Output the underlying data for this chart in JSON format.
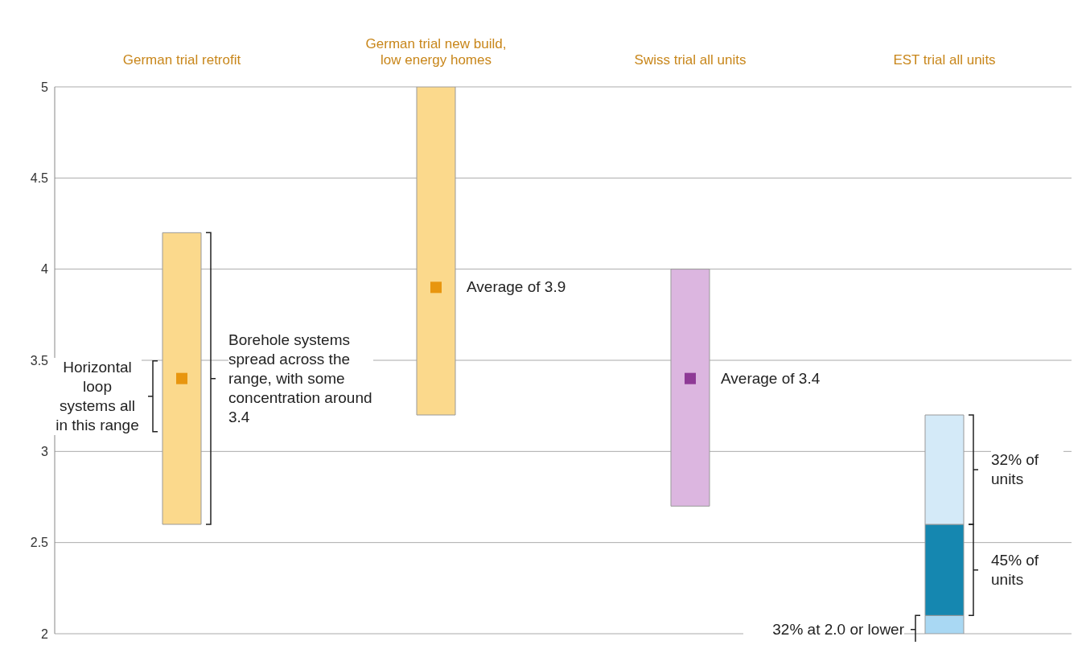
{
  "chart_data": {
    "type": "bar",
    "categories": [
      "German trial retrofit",
      "German trial new build, low energy homes",
      "Swiss trial all units",
      "EST trial all units"
    ],
    "series": [
      {
        "colors": [
          "#fbd98c",
          "#fbd98c",
          "#dcb6e0",
          "#a9d8f3"
        ],
        "base": [
          2.6,
          3.2,
          2.7,
          2.0
        ],
        "values": [
          1.6,
          1.8,
          1.3,
          0.1
        ]
      },
      {
        "color": "#1587b0",
        "base": [
          null,
          null,
          null,
          2.1
        ],
        "values": [
          null,
          null,
          null,
          0.5
        ]
      },
      {
        "color": "#d4eaf8",
        "base": [
          null,
          null,
          null,
          2.6
        ],
        "values": [
          null,
          null,
          null,
          0.6
        ]
      },
      {
        "type": "scatter",
        "x": [
          "German trial retrofit",
          "German trial new build, low energy homes",
          "Swiss trial all units"
        ],
        "colors": [
          "#e8960f",
          "#e8960f",
          "#8e3a96"
        ],
        "marker": "square",
        "values": [
          3.4,
          3.9,
          3.4
        ]
      }
    ],
    "ylim": [
      2,
      5
    ],
    "yticks": [
      2,
      2.5,
      3,
      3.5,
      4,
      4.5,
      5
    ],
    "grid": "y",
    "annotations": [
      "Horizontal loop systems all in this range",
      "Borehole systems spread across the range, with some concentration around 3.4",
      {
        "text": "Average of 3.9",
        "x": "German trial new build, low energy homes",
        "y": 3.9
      },
      {
        "text": "Average of 3.4",
        "x": "Swiss trial all units",
        "y": 3.4
      },
      "32% of units",
      "45% of units",
      "32% at 2.0 or lower"
    ]
  }
}
